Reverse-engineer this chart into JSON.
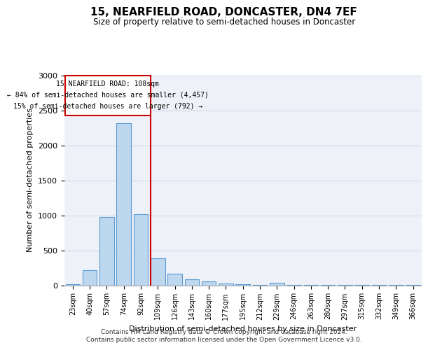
{
  "title": "15, NEARFIELD ROAD, DONCASTER, DN4 7EF",
  "subtitle": "Size of property relative to semi-detached houses in Doncaster",
  "xlabel": "Distribution of semi-detached houses by size in Doncaster",
  "ylabel": "Number of semi-detached properties",
  "categories": [
    "23sqm",
    "40sqm",
    "57sqm",
    "74sqm",
    "92sqm",
    "109sqm",
    "126sqm",
    "143sqm",
    "160sqm",
    "177sqm",
    "195sqm",
    "212sqm",
    "229sqm",
    "246sqm",
    "263sqm",
    "280sqm",
    "297sqm",
    "315sqm",
    "332sqm",
    "349sqm",
    "366sqm"
  ],
  "values": [
    12,
    220,
    980,
    2320,
    1020,
    390,
    170,
    90,
    55,
    30,
    18,
    10,
    40,
    5,
    3,
    2,
    2,
    2,
    1,
    1,
    1
  ],
  "bar_color": "#bdd7ee",
  "bar_edge_color": "#5b9bd5",
  "annotation_title": "15 NEARFIELD ROAD: 108sqm",
  "annotation_line1": "← 84% of semi-detached houses are smaller (4,457)",
  "annotation_line2": "15% of semi-detached houses are larger (792) →",
  "annotation_box_color": "#ffffff",
  "annotation_box_edge": "#cc0000",
  "vline_color": "#cc0000",
  "vline_x_index": 4.575,
  "ylim": [
    0,
    3000
  ],
  "yticks": [
    0,
    500,
    1000,
    1500,
    2000,
    2500,
    3000
  ],
  "grid_color": "#d0d8e8",
  "background_color": "#eef2f8",
  "footer1": "Contains HM Land Registry data © Crown copyright and database right 2024.",
  "footer2": "Contains public sector information licensed under the Open Government Licence v3.0."
}
